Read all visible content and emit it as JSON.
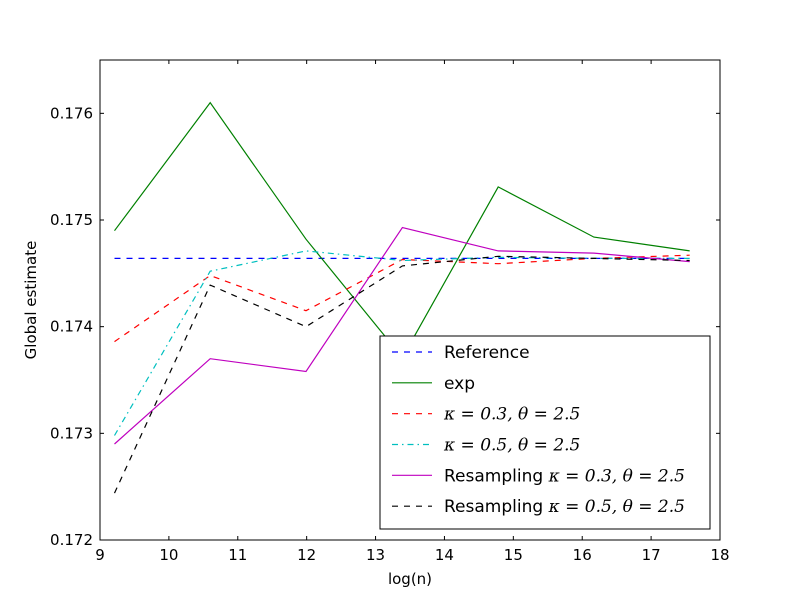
{
  "chart_data": {
    "type": "line",
    "title": "",
    "xlabel": "log(n)",
    "ylabel": "Global estimate",
    "xlim": [
      9,
      18
    ],
    "ylim": [
      0.172,
      0.1765
    ],
    "xticks": [
      "9",
      "10",
      "11",
      "12",
      "13",
      "14",
      "15",
      "16",
      "17",
      "18"
    ],
    "yticks": [
      "0.172",
      "0.173",
      "0.174",
      "0.175",
      "0.176"
    ],
    "x": [
      9.21,
      10.6,
      11.99,
      13.39,
      14.78,
      16.17,
      17.56
    ],
    "legend_position": "lower-right",
    "series": [
      {
        "name": "Reference",
        "legend_prefix": "",
        "legend_math": "",
        "color": "#0000ff",
        "dash": "dashed",
        "values": [
          0.17464,
          0.17464,
          0.17464,
          0.17464,
          0.17464,
          0.17464,
          0.17464
        ]
      },
      {
        "name": "exp",
        "legend_prefix": "",
        "legend_math": "",
        "color": "#008000",
        "dash": "solid",
        "values": [
          0.1749,
          0.1761,
          0.17482,
          0.17371,
          0.17531,
          0.17484,
          0.17471
        ]
      },
      {
        "name": "κ=0.3,θ=2.5",
        "legend_prefix": "",
        "legend_math": "κ = 0.3, θ = 2.5",
        "color": "#ff0000",
        "dash": "dashed",
        "values": [
          0.17386,
          0.17448,
          0.17415,
          0.17463,
          0.17459,
          0.17464,
          0.17467
        ]
      },
      {
        "name": "κ=0.5,θ=2.5",
        "legend_prefix": "",
        "legend_math": "κ = 0.5, θ = 2.5",
        "color": "#00bfbf",
        "dash": "dashdot",
        "values": [
          0.17298,
          0.17452,
          0.17471,
          0.17462,
          0.17465,
          0.17464,
          0.17464
        ]
      },
      {
        "name": "Resampling κ=0.3,θ=2.5",
        "legend_prefix": "Resampling",
        "legend_math": "κ = 0.3, θ = 2.5",
        "color": "#bf00bf",
        "dash": "solid",
        "values": [
          0.1729,
          0.1737,
          0.17358,
          0.17493,
          0.17471,
          0.17469,
          0.17461
        ]
      },
      {
        "name": "Resampling κ=0.5,θ=2.5",
        "legend_prefix": "Resampling",
        "legend_math": "κ = 0.5, θ = 2.5",
        "color": "#000000",
        "dash": "dashed",
        "values": [
          0.17244,
          0.17439,
          0.174,
          0.17457,
          0.17466,
          0.17464,
          0.17462
        ]
      }
    ]
  }
}
